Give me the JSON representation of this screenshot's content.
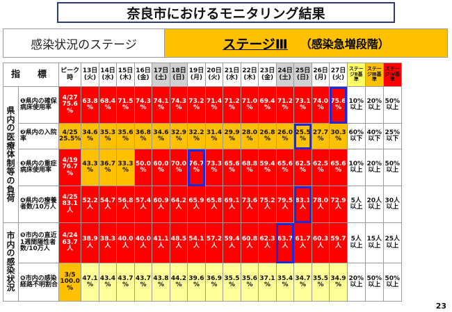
{
  "title": "奈良市におけるモニタリング結果",
  "stage": {
    "label": "感染状況のステージ",
    "value": "ステージⅢ",
    "sub": "（感染急増段階）"
  },
  "header": {
    "indicator": "指　標",
    "peak": "ピーク時",
    "dates": [
      {
        "day": "13日",
        "dow": "(火)",
        "gray": false
      },
      {
        "day": "14日",
        "dow": "(水)",
        "gray": false
      },
      {
        "day": "15日",
        "dow": "(木)",
        "gray": false
      },
      {
        "day": "16日",
        "dow": "(金)",
        "gray": false
      },
      {
        "day": "17日",
        "dow": "(土)",
        "gray": true
      },
      {
        "day": "18日",
        "dow": "(日)",
        "gray": true
      },
      {
        "day": "19日",
        "dow": "(月)",
        "gray": false
      },
      {
        "day": "20日",
        "dow": "(火)",
        "gray": false
      },
      {
        "day": "21日",
        "dow": "(水)",
        "gray": false
      },
      {
        "day": "22日",
        "dow": "(木)",
        "gray": false
      },
      {
        "day": "23日",
        "dow": "(金)",
        "gray": false
      },
      {
        "day": "24日",
        "dow": "(土)",
        "gray": true
      },
      {
        "day": "25日",
        "dow": "(日)",
        "gray": true
      },
      {
        "day": "26日",
        "dow": "(月)",
        "gray": false
      },
      {
        "day": "27日",
        "dow": "(火)",
        "gray": false
      }
    ],
    "thresholds": [
      "ステージⅡ基準",
      "ステージⅢ基準",
      "ステージⅣ基準"
    ]
  },
  "categories": [
    {
      "label": "県内の医療体制等の負荷",
      "rows": 4
    },
    {
      "label": "市内の感染状況",
      "rows": 2
    }
  ],
  "rows": [
    {
      "num": "❶",
      "label": "県内の確保病床使用率",
      "peak": "4/27 75.6 %",
      "peak_color": "r",
      "values": [
        "63.8 %",
        "68.4 %",
        "71.5 %",
        "74.3 %",
        "74.1 %",
        "74.3 %",
        "73.2 %",
        "71.4 %",
        "71.2 %",
        "71.0 %",
        "69.4 %",
        "71.2 %",
        "73.1 %",
        "74.0 %",
        "75.6 %"
      ],
      "colors": [
        "r",
        "r",
        "r",
        "r",
        "r",
        "r",
        "r",
        "r",
        "r",
        "r",
        "r",
        "r",
        "r",
        "r",
        "r"
      ],
      "boxed": [
        14
      ],
      "thresholds": [
        "10% 以上",
        "20% 以上",
        "50% 以上"
      ]
    },
    {
      "num": "❷",
      "label": "県内の入院率",
      "peak": "4/25 25.5%",
      "peak_color": "o",
      "values": [
        "34.6 %",
        "35.3 %",
        "35.6 %",
        "36.8 %",
        "34.6 %",
        "32.9 %",
        "32.2 %",
        "31.4 %",
        "29.9 %",
        "28.0 %",
        "26.8 %",
        "26.0 %",
        "25.5 %",
        "27.7 %",
        "30.3 %"
      ],
      "colors": [
        "o",
        "o",
        "o",
        "o",
        "o",
        "o",
        "o",
        "o",
        "o",
        "o",
        "o",
        "o",
        "o",
        "o",
        "o"
      ],
      "boxed": [
        12
      ],
      "thresholds": [
        "60% 以下",
        "40% 以下",
        "25% 以下"
      ]
    },
    {
      "num": "❸",
      "label": "県内の重症病床使用率",
      "peak": "4/19 76.7 %",
      "peak_color": "r",
      "values": [
        "43.3 %",
        "36.7 %",
        "33.3 %",
        "50.0 %",
        "60.0 %",
        "70.0 %",
        "76.7 %",
        "73.3 %",
        "65.6 %",
        "68.8 %",
        "59.4 %",
        "65.6 %",
        "62.5 %",
        "62.5 %",
        "65.6 %"
      ],
      "colors": [
        "o",
        "o",
        "o",
        "r",
        "r",
        "r",
        "r",
        "r",
        "r",
        "r",
        "r",
        "r",
        "r",
        "r",
        "r"
      ],
      "boxed": [
        6
      ],
      "thresholds": [
        "10% 以上",
        "20% 以上",
        "50% 以上"
      ]
    },
    {
      "num": "❹",
      "label": "県内の療養者数/10万人",
      "peak": "4/25 83.1 人",
      "peak_color": "r",
      "values": [
        "52.2 人",
        "54.7 人",
        "56.8 人",
        "57.4 人",
        "60.9 人",
        "64.2 人",
        "65.9 人",
        "65.8 人",
        "69.1 人",
        "73.6 人",
        "75.2 人",
        "79.5 人",
        "83.1 人",
        "78.0 人",
        "72.9 人"
      ],
      "colors": [
        "r",
        "r",
        "r",
        "r",
        "r",
        "r",
        "r",
        "r",
        "r",
        "r",
        "r",
        "r",
        "r",
        "r",
        "r"
      ],
      "boxed": [
        12
      ],
      "thresholds": [
        "5人 以上",
        "20人 以上",
        "30人 以上"
      ]
    },
    {
      "num": "❺",
      "label": "市内の直近1週間陽性者数/10万人",
      "peak": "4/24 63.7 人",
      "peak_color": "r",
      "values": [
        "38.9 人",
        "38.3 人",
        "40.0 人",
        "40.0 人",
        "41.1 人",
        "48.5 人",
        "54.1 人",
        "57.2 人",
        "59.4 人",
        "60.8 人",
        "62.3 人",
        "63.7 人",
        "61.7 人",
        "60.3 人",
        "59.7 人"
      ],
      "colors": [
        "r",
        "r",
        "r",
        "r",
        "r",
        "r",
        "r",
        "r",
        "r",
        "r",
        "r",
        "r",
        "r",
        "r",
        "r"
      ],
      "boxed": [
        11
      ],
      "thresholds": [
        "5人 以上",
        "15人 以上",
        "25人 以上"
      ]
    },
    {
      "num": "❻",
      "label": "市内の感染経路不明割合",
      "peak": "3/5 100.0 %",
      "peak_color": "o",
      "values": [
        "47.1 %",
        "43.4 %",
        "43.7 %",
        "43.7 %",
        "43.8 %",
        "44.2 %",
        "39.6 %",
        "36.9 %",
        "35.5 %",
        "35.6 %",
        "37.1 %",
        "35.4 %",
        "34.7 %",
        "35.5 %",
        "34.9 %"
      ],
      "colors": [
        "y",
        "y",
        "y",
        "y",
        "y",
        "y",
        "y",
        "y",
        "y",
        "y",
        "y",
        "y",
        "y",
        "y",
        "y"
      ],
      "boxed": [],
      "thresholds": [
        "20% 以上",
        "50% 以上",
        "50% 以上"
      ]
    }
  ],
  "page_number": "23"
}
